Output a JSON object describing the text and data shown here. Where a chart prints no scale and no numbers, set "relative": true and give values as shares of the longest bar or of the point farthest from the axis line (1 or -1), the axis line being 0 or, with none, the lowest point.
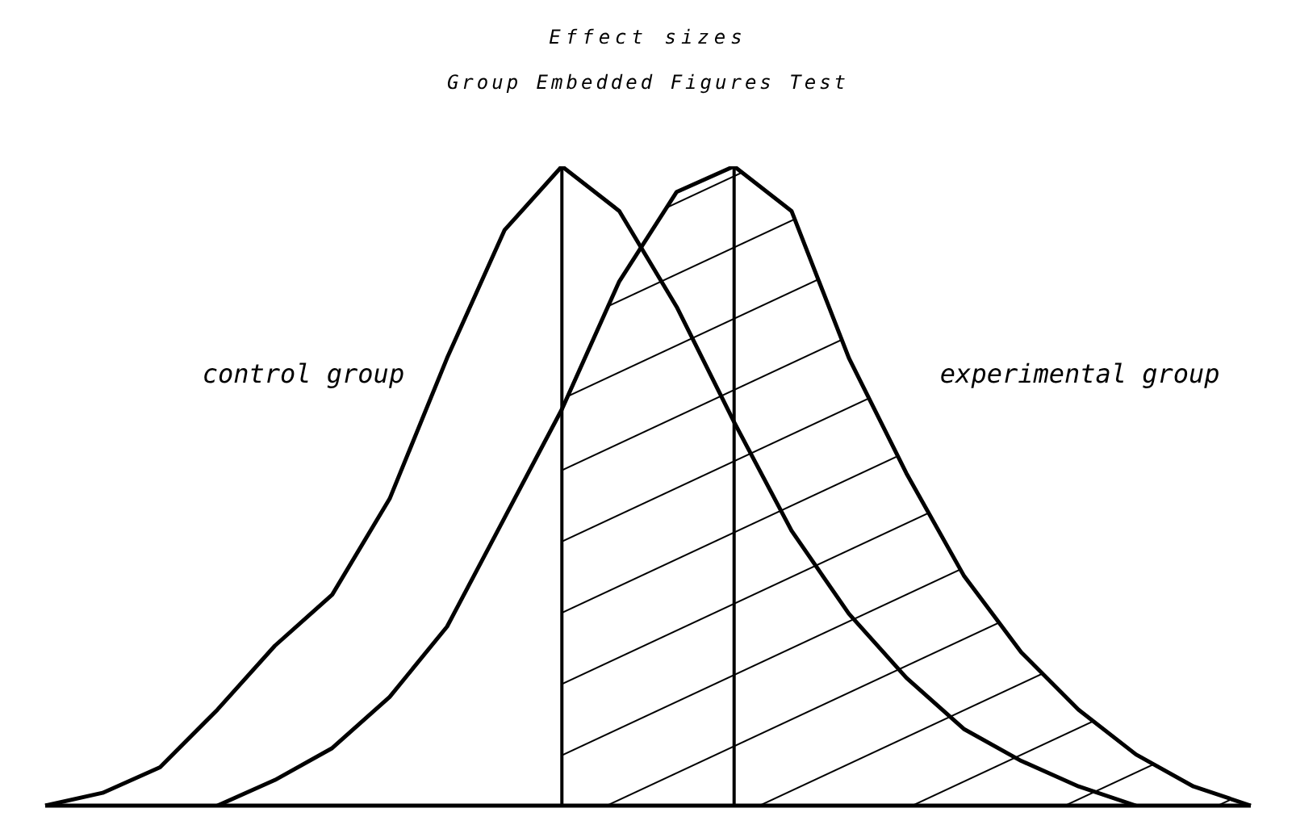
{
  "chart_data": {
    "type": "line",
    "title": "Effect sizes",
    "subtitle": "Group Embedded Figures Test",
    "relative": true,
    "categories": [
      null,
      null,
      null,
      null,
      null,
      null,
      null,
      null,
      null,
      null,
      null,
      null,
      null,
      null,
      null,
      null,
      null,
      null,
      null,
      null,
      null,
      null
    ],
    "series": [
      {
        "name": "control group",
        "color": "#000000",
        "values": [
          0,
          0.02,
          0.06,
          0.15,
          0.25,
          0.33,
          0.48,
          0.7,
          0.9,
          1.0,
          0.93,
          0.78,
          0.6,
          0.43,
          0.3,
          0.2,
          0.12,
          0.07,
          0.03,
          0,
          null,
          null
        ]
      },
      {
        "name": "experimental group",
        "color": "#000000",
        "values": [
          null,
          null,
          null,
          0,
          0.04,
          0.09,
          0.17,
          0.28,
          0.45,
          0.62,
          0.82,
          0.96,
          1.0,
          0.93,
          0.7,
          0.52,
          0.36,
          0.24,
          0.15,
          0.08,
          0.03,
          0
        ]
      },
      {
        "type": "area",
        "color": "#000000",
        "values": [
          null,
          null,
          null,
          null,
          null,
          null,
          null,
          null,
          null,
          0.62,
          0.82,
          0.96,
          1.0,
          0.93,
          0.7,
          0.52,
          0.36,
          0.24,
          0.15,
          0.08,
          0.03,
          0
        ]
      }
    ],
    "grid": false,
    "legend": false,
    "marker": "none",
    "line_style": "solid"
  }
}
